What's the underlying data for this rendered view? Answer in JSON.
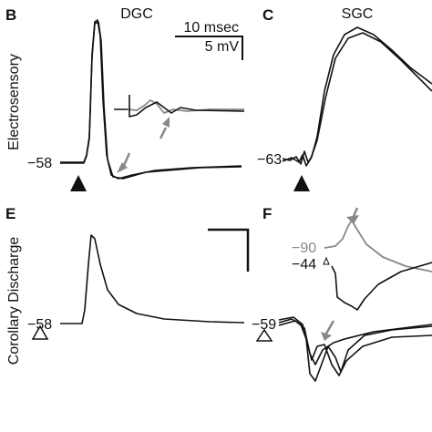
{
  "row_labels": [
    "Electrosensory",
    "Corollary Discharge"
  ],
  "scale_bar": [
    "10 msec",
    "5 mV"
  ],
  "panels": [
    {
      "label": "B",
      "title": "DGC",
      "potentials": [
        "−58"
      ]
    },
    {
      "label": "C",
      "title": "SGC",
      "potentials": [
        "−63"
      ]
    },
    {
      "label": "E",
      "potentials": [
        "−58"
      ]
    },
    {
      "label": "F",
      "potentials": [
        "−90",
        "−44",
        "−59"
      ]
    }
  ]
}
